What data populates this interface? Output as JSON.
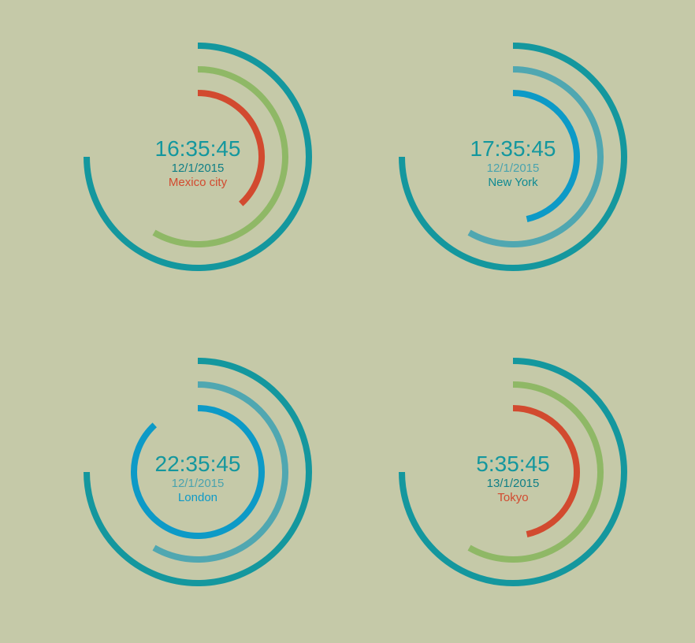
{
  "clocks": [
    {
      "time": "16:35:45",
      "date": "12/1/2015",
      "city": "Mexico city",
      "hours": 16,
      "minutes": 35,
      "seconds": 45,
      "colors": {
        "time": "#14979e",
        "date": "#0f7f86",
        "city": "#d24a2f"
      },
      "rings": {
        "hour": "#d24a2f",
        "minute": "#8fb866",
        "second": "#14979e"
      }
    },
    {
      "time": "17:35:45",
      "date": "12/1/2015",
      "city": "New York",
      "hours": 17,
      "minutes": 35,
      "seconds": 45,
      "colors": {
        "time": "#14979e",
        "date": "#4aa3ae",
        "city": "#0f8a92"
      },
      "rings": {
        "hour": "#0d9ac7",
        "minute": "#50a7b1",
        "second": "#14979e"
      }
    },
    {
      "time": "22:35:45",
      "date": "12/1/2015",
      "city": "London",
      "hours": 22,
      "minutes": 35,
      "seconds": 45,
      "colors": {
        "time": "#14979e",
        "date": "#4aa3ae",
        "city": "#0d9ac7"
      },
      "rings": {
        "hour": "#0d9ac7",
        "minute": "#50a7b1",
        "second": "#14979e"
      }
    },
    {
      "time": "5:35:45",
      "date": "13/1/2015",
      "city": "Tokyo",
      "hours": 5,
      "minutes": 35,
      "seconds": 45,
      "colors": {
        "time": "#14979e",
        "date": "#0f7f86",
        "city": "#d24a2f"
      },
      "rings": {
        "hour": "#d24a2f",
        "minute": "#8fb866",
        "second": "#14979e"
      }
    }
  ]
}
